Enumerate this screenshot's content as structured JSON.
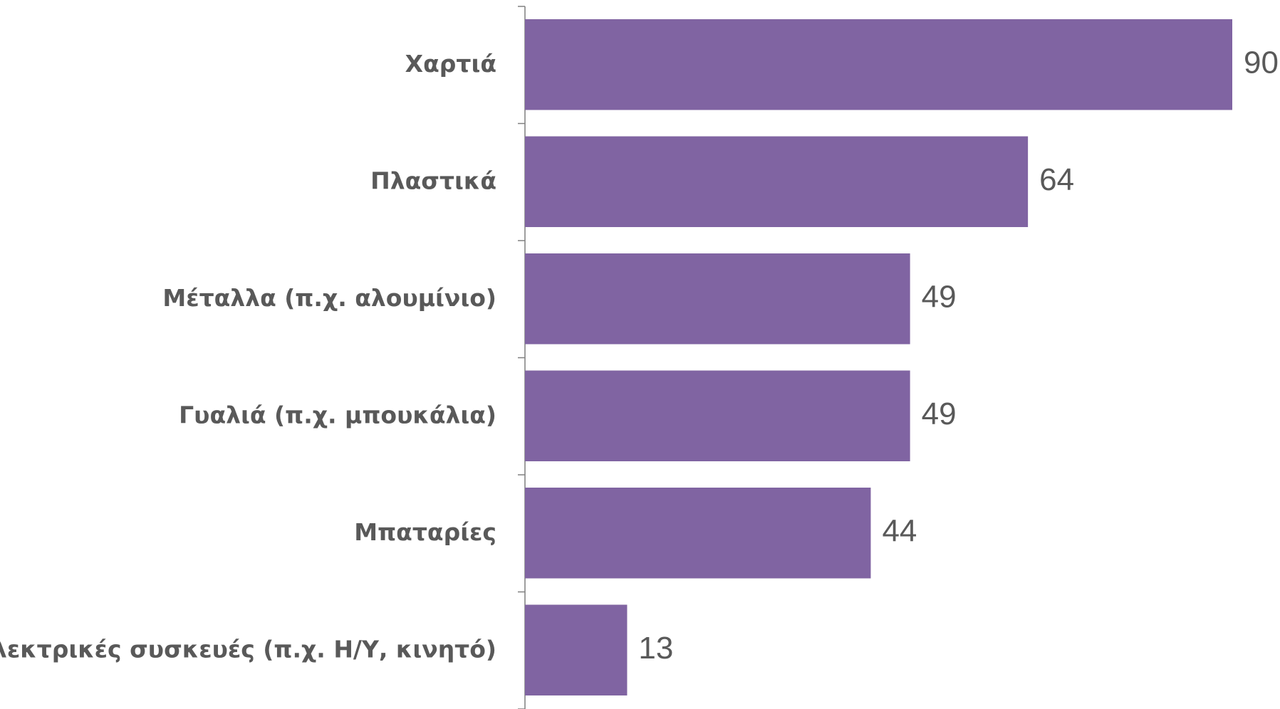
{
  "chart_data": {
    "type": "bar",
    "orientation": "horizontal",
    "categories": [
      "Χαρτιά",
      "Πλαστικά",
      "Μέταλλα (π.χ. αλουμίνιο)",
      "Γυαλιά (π.χ. μπουκάλια)",
      "Μπαταρίες",
      "Ηλεκτρικές συσκευές (π.χ. Η/Υ, κινητό)"
    ],
    "values": [
      90,
      64,
      49,
      49,
      44,
      13
    ],
    "color": "#8064a2"
  }
}
